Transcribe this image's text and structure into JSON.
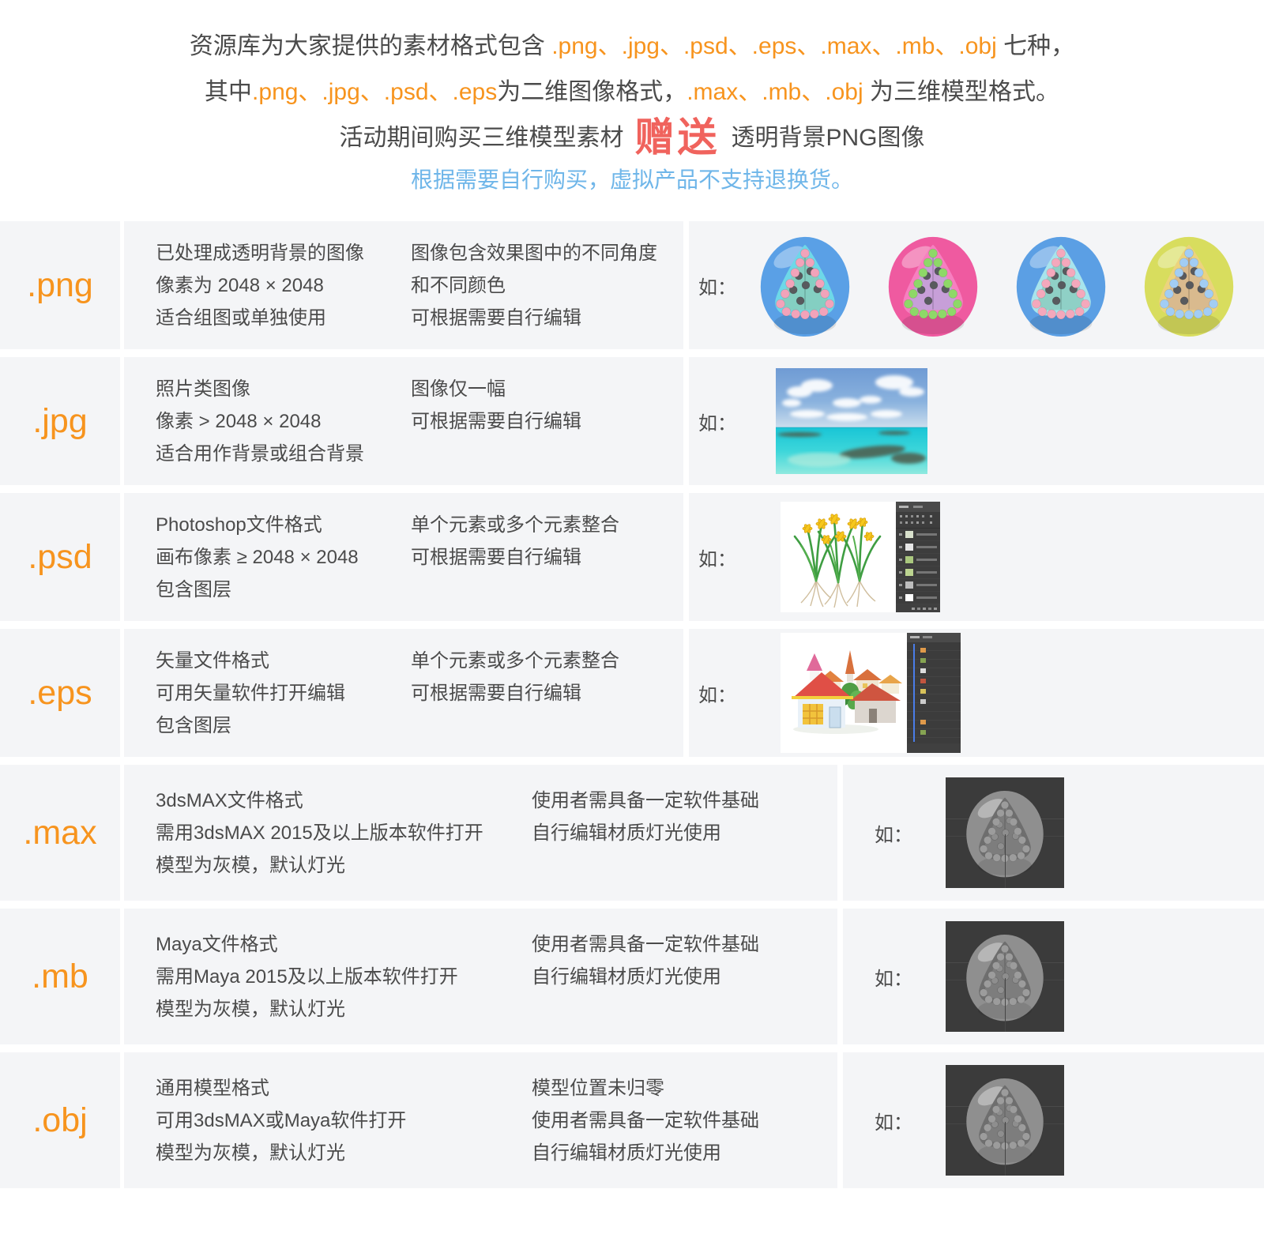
{
  "colors": {
    "orange": "#f7941e",
    "text": "#4b4b4b",
    "notice": "#6fb6e9",
    "badge": "#f0635d",
    "rowbg": "#f4f5f7"
  },
  "intro": {
    "line1": {
      "pre": "资源库为大家提供的素材格式包含 ",
      "formats": ".png、.jpg、.psd、.eps、.max、.mb、.obj",
      "post": " 七种，"
    },
    "line2": {
      "pre": "其中",
      "formats2d": ".png、.jpg、.psd、.eps",
      "mid": "为二维图像格式，",
      "formats3d": ".max、.mb、.obj",
      "post": " 为三维模型格式。"
    },
    "promo": {
      "pre": "活动期间购买三维模型素材",
      "badge": "赠送",
      "post": "透明背景PNG图像"
    },
    "notice": "根据需要自行购买，虚拟产品不支持退换货。"
  },
  "example_label": "如：",
  "model_ball": {
    "body": "#8f8f8f",
    "rim": "#6e6e6e",
    "inner": "#7d7d7d",
    "bead": "#9c9c9c",
    "pip": "#8e8e8e"
  },
  "rows": [
    {
      "ext": ".png",
      "desc": [
        "已处理成透明背景的图像",
        "像素为 2048 × 2048",
        "适合组图或单独使用"
      ],
      "notes": [
        "图像包含效果图中的不同角度",
        "和不同颜色",
        "可根据需要自行编辑"
      ],
      "example": {
        "type": "balls",
        "balls": [
          {
            "body": "#5aa0e6",
            "rim": "#6ed8e8",
            "inner": "#84cfc2",
            "bead": "#f2a3ba",
            "pip": "#585a5e"
          },
          {
            "body": "#ef5aa0",
            "rim": "#f77fc0",
            "inner": "#c79fd8",
            "bead": "#8ed868",
            "pip": "#585a5e"
          },
          {
            "body": "#5b9fe4",
            "rim": "#a8e4ec",
            "inner": "#8fd0c6",
            "bead": "#f4a8bc",
            "pip": "#585a5e"
          },
          {
            "body": "#d8dd5e",
            "rim": "#ecd37e",
            "inner": "#d9ba8e",
            "bead": "#a2cdf4",
            "pip": "#585a5e"
          }
        ]
      }
    },
    {
      "ext": ".jpg",
      "desc": [
        "照片类图像",
        "像素 > 2048 × 2048",
        "适合用作背景或组合背景"
      ],
      "notes": [
        "图像仅一幅",
        "可根据需要自行编辑"
      ],
      "example": {
        "type": "photo"
      }
    },
    {
      "ext": ".psd",
      "desc": [
        "Photoshop文件格式",
        "画布像素 ≥ 2048 × 2048",
        "包含图层"
      ],
      "notes": [
        "单个元素或多个元素整合",
        "可根据需要自行编辑"
      ],
      "example": {
        "type": "psd-canvas-with-layers-panel"
      }
    },
    {
      "ext": ".eps",
      "desc": [
        "矢量文件格式",
        "可用矢量软件打开编辑",
        "包含图层"
      ],
      "notes": [
        "单个元素或多个元素整合",
        "可根据需要自行编辑"
      ],
      "example": {
        "type": "eps-canvas-with-layers-panel"
      }
    },
    {
      "ext": ".max",
      "desc": [
        "3dsMAX文件格式",
        "需用3dsMAX 2015及以上版本软件打开",
        "模型为灰模，默认灯光"
      ],
      "notes": [
        "使用者需具备一定软件基础",
        "自行编辑材质灯光使用"
      ],
      "example": {
        "type": "gray-model-viewport"
      }
    },
    {
      "ext": ".mb",
      "desc": [
        "Maya文件格式",
        "需用Maya 2015及以上版本软件打开",
        "模型为灰模，默认灯光"
      ],
      "notes": [
        "使用者需具备一定软件基础",
        "自行编辑材质灯光使用"
      ],
      "example": {
        "type": "gray-model-viewport"
      }
    },
    {
      "ext": ".obj",
      "desc": [
        "通用模型格式",
        "可用3dsMAX或Maya软件打开",
        "模型为灰模，默认灯光"
      ],
      "notes": [
        "模型位置未归零",
        "使用者需具备一定软件基础",
        "自行编辑材质灯光使用"
      ],
      "example": {
        "type": "gray-model-viewport"
      }
    }
  ]
}
